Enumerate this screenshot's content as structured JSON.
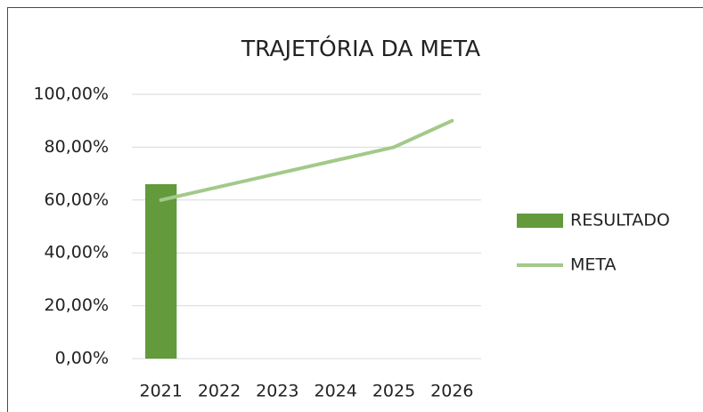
{
  "chart_data": {
    "type": "bar",
    "title": "TRAJETÓRIA DA META",
    "categories": [
      "2021",
      "2022",
      "2023",
      "2024",
      "2025",
      "2026"
    ],
    "series": [
      {
        "name": "RESULTADO",
        "type": "bar",
        "color": "#629a3c",
        "values": [
          66,
          null,
          null,
          null,
          null,
          null
        ]
      },
      {
        "name": "META",
        "type": "line",
        "color": "#a3c98a",
        "values": [
          60,
          65,
          70,
          75,
          80,
          90
        ]
      }
    ],
    "ylim": [
      0,
      100
    ],
    "yticks": [
      {
        "value": 0,
        "label": "0,00%"
      },
      {
        "value": 20,
        "label": "20,00%"
      },
      {
        "value": 40,
        "label": "40,00%"
      },
      {
        "value": 60,
        "label": "60,00%"
      },
      {
        "value": 80,
        "label": "80,00%"
      },
      {
        "value": 100,
        "label": "100,00%"
      }
    ],
    "grid": true,
    "legend": "right"
  }
}
